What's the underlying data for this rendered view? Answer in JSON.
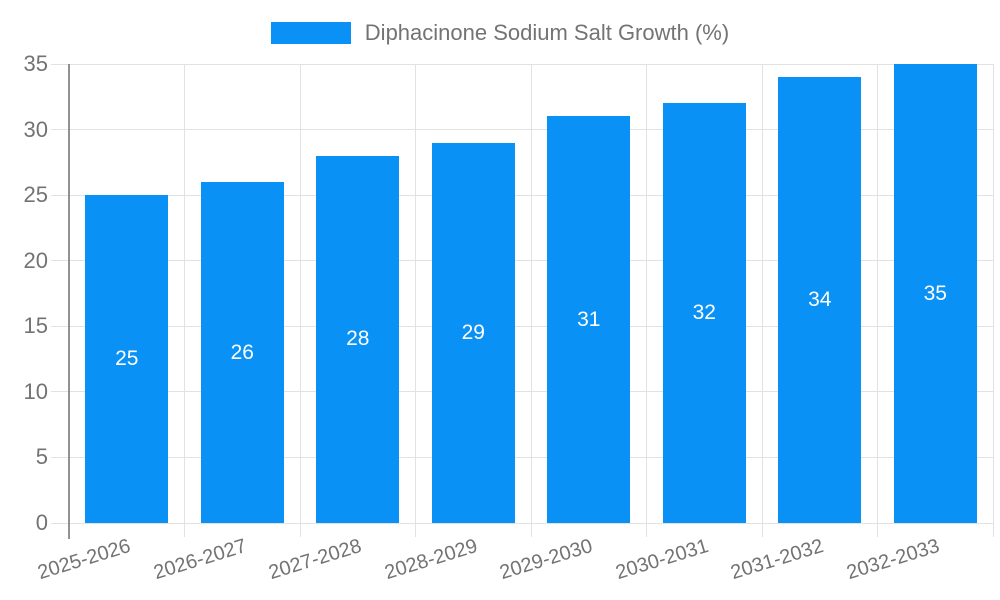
{
  "chart_data": {
    "type": "bar",
    "title": "",
    "legend": [
      "Diphacinone Sodium Salt Growth (%)"
    ],
    "legend_position": "top-center",
    "categories": [
      "2025-2026",
      "2026-2027",
      "2027-2028",
      "2028-2029",
      "2029-2030",
      "2030-2031",
      "2031-2032",
      "2032-2033"
    ],
    "values": [
      25,
      26,
      28,
      29,
      31,
      32,
      34,
      35
    ],
    "xlabel": "",
    "ylabel": "",
    "ylim": [
      0,
      35
    ],
    "yticks": [
      0,
      5,
      10,
      15,
      20,
      25,
      30,
      35
    ],
    "grid": true,
    "bar_labels_inside_middle": true
  },
  "colors": {
    "bar": "#0A91F5",
    "grid": "#E2E2E2",
    "axis": "#919191",
    "text": "#737373",
    "bar_label": "#FFFFFF",
    "background": "#FFFFFF"
  }
}
